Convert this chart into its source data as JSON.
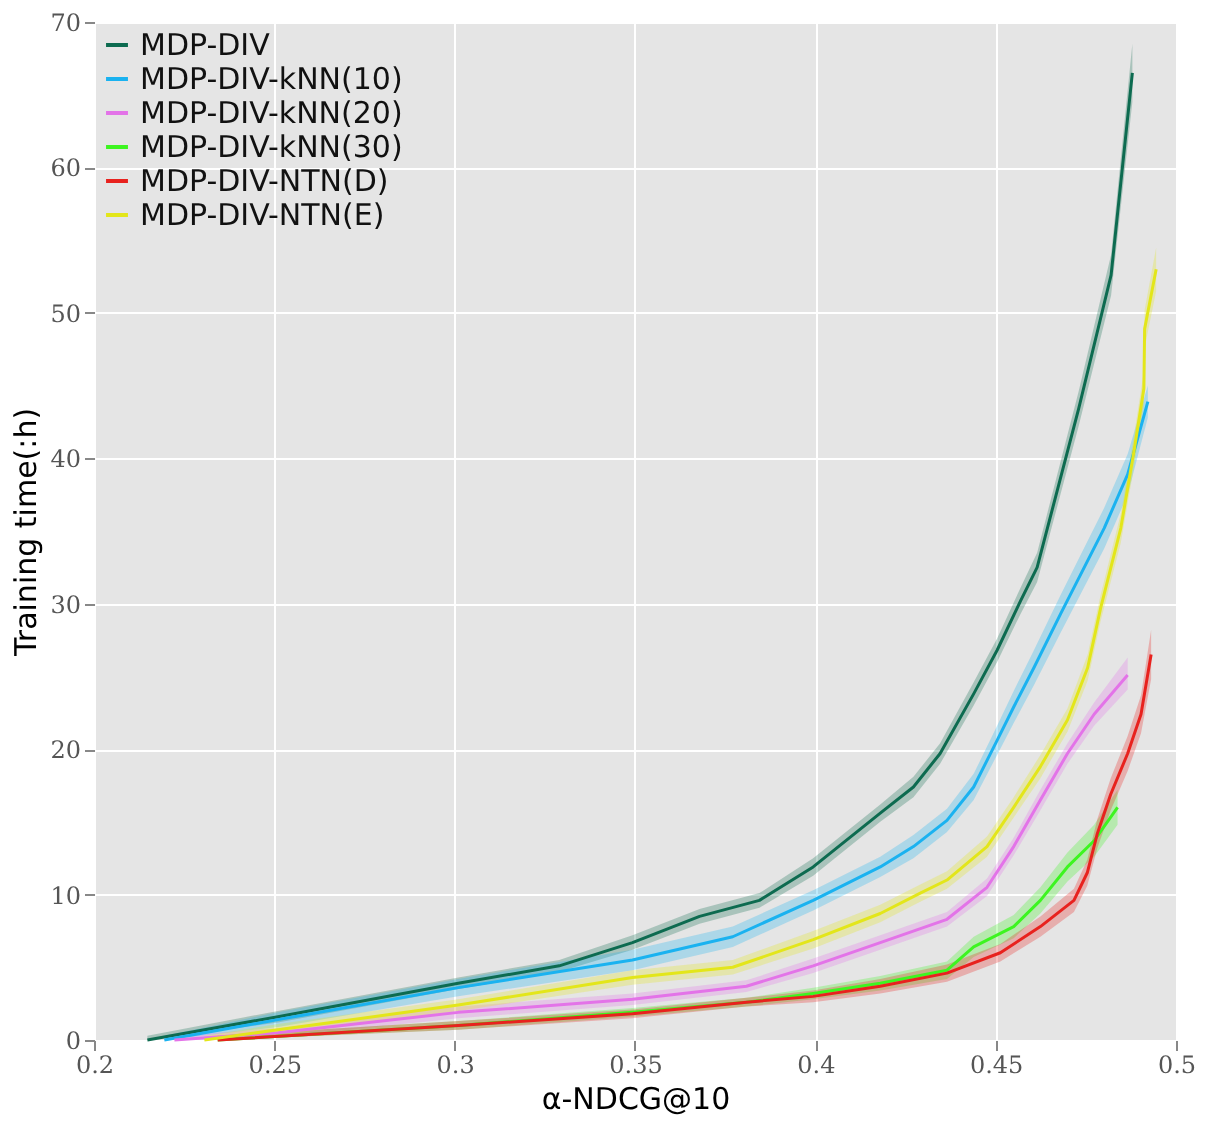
{
  "chart_data": {
    "type": "line",
    "xlabel": "α-NDCG@10",
    "ylabel": "Training time(:h)",
    "xlim": [
      0.2,
      0.5
    ],
    "xticks": [
      0.2,
      0.25,
      0.3,
      0.35,
      0.4,
      0.45,
      0.5
    ],
    "ylim": [
      0,
      70
    ],
    "yticks": [
      0,
      10,
      20,
      30,
      40,
      50,
      60,
      70
    ],
    "grid": true,
    "legend": "top left",
    "marker": "none",
    "line_style": "solid",
    "series": [
      {
        "name": "MDP-DIV",
        "color": "#0d6b50",
        "x": [
          0.2148,
          0.251,
          0.301,
          0.329,
          0.3493,
          0.3679,
          0.3845,
          0.3994,
          0.418,
          0.4272,
          0.4346,
          0.4439,
          0.4504,
          0.4569,
          0.4615,
          0.473,
          0.482,
          0.4879
        ],
        "values": [
          0,
          1.6,
          3.9,
          5.1,
          6.7,
          8.5,
          9.6,
          11.9,
          15.6,
          17.4,
          19.7,
          23.8,
          26.8,
          30.2,
          32.5,
          43.4,
          52.6,
          66.5
        ],
        "lower": [
          0,
          1.2,
          3.5,
          4.7,
          6.2,
          8,
          9.1,
          11.3,
          15,
          16.7,
          19,
          23,
          26,
          29.3,
          31.5,
          42.2,
          51.2,
          64.5
        ],
        "upper": [
          0.3,
          2,
          4.3,
          5.5,
          7.2,
          9,
          10.1,
          12.5,
          16.2,
          18.1,
          20.4,
          24.6,
          27.6,
          31.1,
          33.5,
          44.6,
          54,
          68.5
        ]
      },
      {
        "name": "MDP-DIV-kNN(10)",
        "color": "#1ab2f0",
        "x": [
          0.2195,
          0.251,
          0.301,
          0.3493,
          0.3771,
          0.3994,
          0.418,
          0.4272,
          0.4365,
          0.4439,
          0.4504,
          0.455,
          0.4606,
          0.468,
          0.4801,
          0.4866,
          0.4922
        ],
        "values": [
          0,
          1.4,
          3.6,
          5.5,
          7.1,
          9.6,
          11.9,
          13.3,
          15.1,
          17.4,
          20.6,
          22.9,
          25.6,
          29.3,
          35.2,
          38.9,
          43.9
        ],
        "lower": [
          0,
          0.9,
          3,
          4.8,
          6.4,
          8.9,
          11.2,
          12.5,
          14.3,
          16.5,
          19.6,
          21.8,
          24.4,
          28,
          33.8,
          37.5,
          42.8
        ],
        "upper": [
          0.3,
          1.9,
          4.2,
          6.2,
          7.8,
          10.3,
          12.6,
          14.1,
          15.9,
          18.3,
          21.6,
          24,
          26.8,
          30.6,
          36.6,
          40.3,
          45
        ]
      },
      {
        "name": "MDP-DIV-kNN(20)",
        "color": "#e373e8",
        "x": [
          0.2223,
          0.251,
          0.301,
          0.3493,
          0.3809,
          0.3994,
          0.418,
          0.4365,
          0.4476,
          0.455,
          0.4624,
          0.4699,
          0.4773,
          0.4866
        ],
        "values": [
          0,
          0.5,
          1.9,
          2.8,
          3.7,
          5.1,
          6.7,
          8.3,
          10.5,
          13.3,
          16.5,
          19.7,
          22.4,
          25.1
        ],
        "lower": [
          0,
          0.2,
          1.5,
          2.4,
          3.3,
          4.6,
          6.2,
          7.8,
          9.9,
          12.7,
          15.8,
          19,
          21.6,
          24.1
        ],
        "upper": [
          0.3,
          0.8,
          2.3,
          3.2,
          4.1,
          5.6,
          7.2,
          8.8,
          11.1,
          13.9,
          17.2,
          20.4,
          23.2,
          26.3
        ]
      },
      {
        "name": "MDP-DIV-kNN(30)",
        "color": "#3df520",
        "x": [
          0.2343,
          0.301,
          0.3493,
          0.3809,
          0.3994,
          0.418,
          0.4365,
          0.4439,
          0.455,
          0.4624,
          0.4699,
          0.4773,
          0.4838
        ],
        "values": [
          0,
          1,
          1.9,
          2.6,
          3.2,
          3.9,
          4.8,
          6.4,
          7.8,
          9.6,
          11.9,
          13.7,
          16
        ],
        "lower": [
          0,
          0.7,
          1.6,
          2.3,
          2.8,
          3.4,
          4.2,
          5.7,
          7,
          8.7,
          10.9,
          12.6,
          14.8
        ],
        "upper": [
          0.3,
          1.3,
          2.2,
          2.9,
          3.6,
          4.4,
          5.4,
          7.1,
          8.6,
          10.5,
          12.9,
          14.8,
          17.2
        ]
      },
      {
        "name": "MDP-DIV-NTN(D)",
        "color": "#e8221e",
        "x": [
          0.2343,
          0.301,
          0.3493,
          0.3809,
          0.3994,
          0.418,
          0.4365,
          0.4513,
          0.4624,
          0.4717,
          0.4754,
          0.4782,
          0.4819,
          0.4866,
          0.4903,
          0.4931
        ],
        "values": [
          0,
          1,
          1.8,
          2.6,
          3,
          3.7,
          4.6,
          6,
          7.8,
          9.6,
          11.5,
          14.2,
          16.9,
          19.7,
          22.4,
          26.5
        ],
        "lower": [
          0,
          0.7,
          1.5,
          2.3,
          2.6,
          3.2,
          4,
          5.4,
          7.1,
          8.8,
          10.6,
          13.2,
          15.8,
          18.5,
          21.1,
          24.8
        ],
        "upper": [
          0.3,
          1.3,
          2.1,
          2.9,
          3.4,
          4.2,
          5.2,
          6.6,
          8.5,
          10.4,
          12.4,
          15.2,
          18,
          20.9,
          23.7,
          28.2
        ]
      },
      {
        "name": "MDP-DIV-NTN(E)",
        "color": "#e3e61a",
        "x": [
          0.2306,
          0.251,
          0.301,
          0.3493,
          0.3771,
          0.3994,
          0.418,
          0.4291,
          0.4365,
          0.4476,
          0.455,
          0.4624,
          0.4699,
          0.4755,
          0.4791,
          0.4847,
          0.4885,
          0.4911,
          0.4913,
          0.4945
        ],
        "values": [
          0,
          0.7,
          2.4,
          4.3,
          5,
          6.9,
          8.7,
          10.1,
          11,
          13.3,
          16,
          18.8,
          22,
          25.6,
          29.7,
          35.2,
          40.7,
          44.8,
          48.9,
          53
        ],
        "lower": [
          0,
          0.3,
          2,
          3.8,
          4.5,
          6.3,
          8.1,
          9.5,
          10.4,
          12.6,
          15.3,
          18,
          21.2,
          24.7,
          28.8,
          34.2,
          39.6,
          43.6,
          47.6,
          51.5
        ],
        "upper": [
          0.3,
          1.1,
          2.8,
          4.8,
          5.5,
          7.5,
          9.3,
          10.7,
          11.6,
          14,
          16.7,
          19.6,
          22.8,
          26.5,
          30.6,
          36.2,
          41.8,
          46,
          50.2,
          54.5
        ]
      }
    ]
  }
}
